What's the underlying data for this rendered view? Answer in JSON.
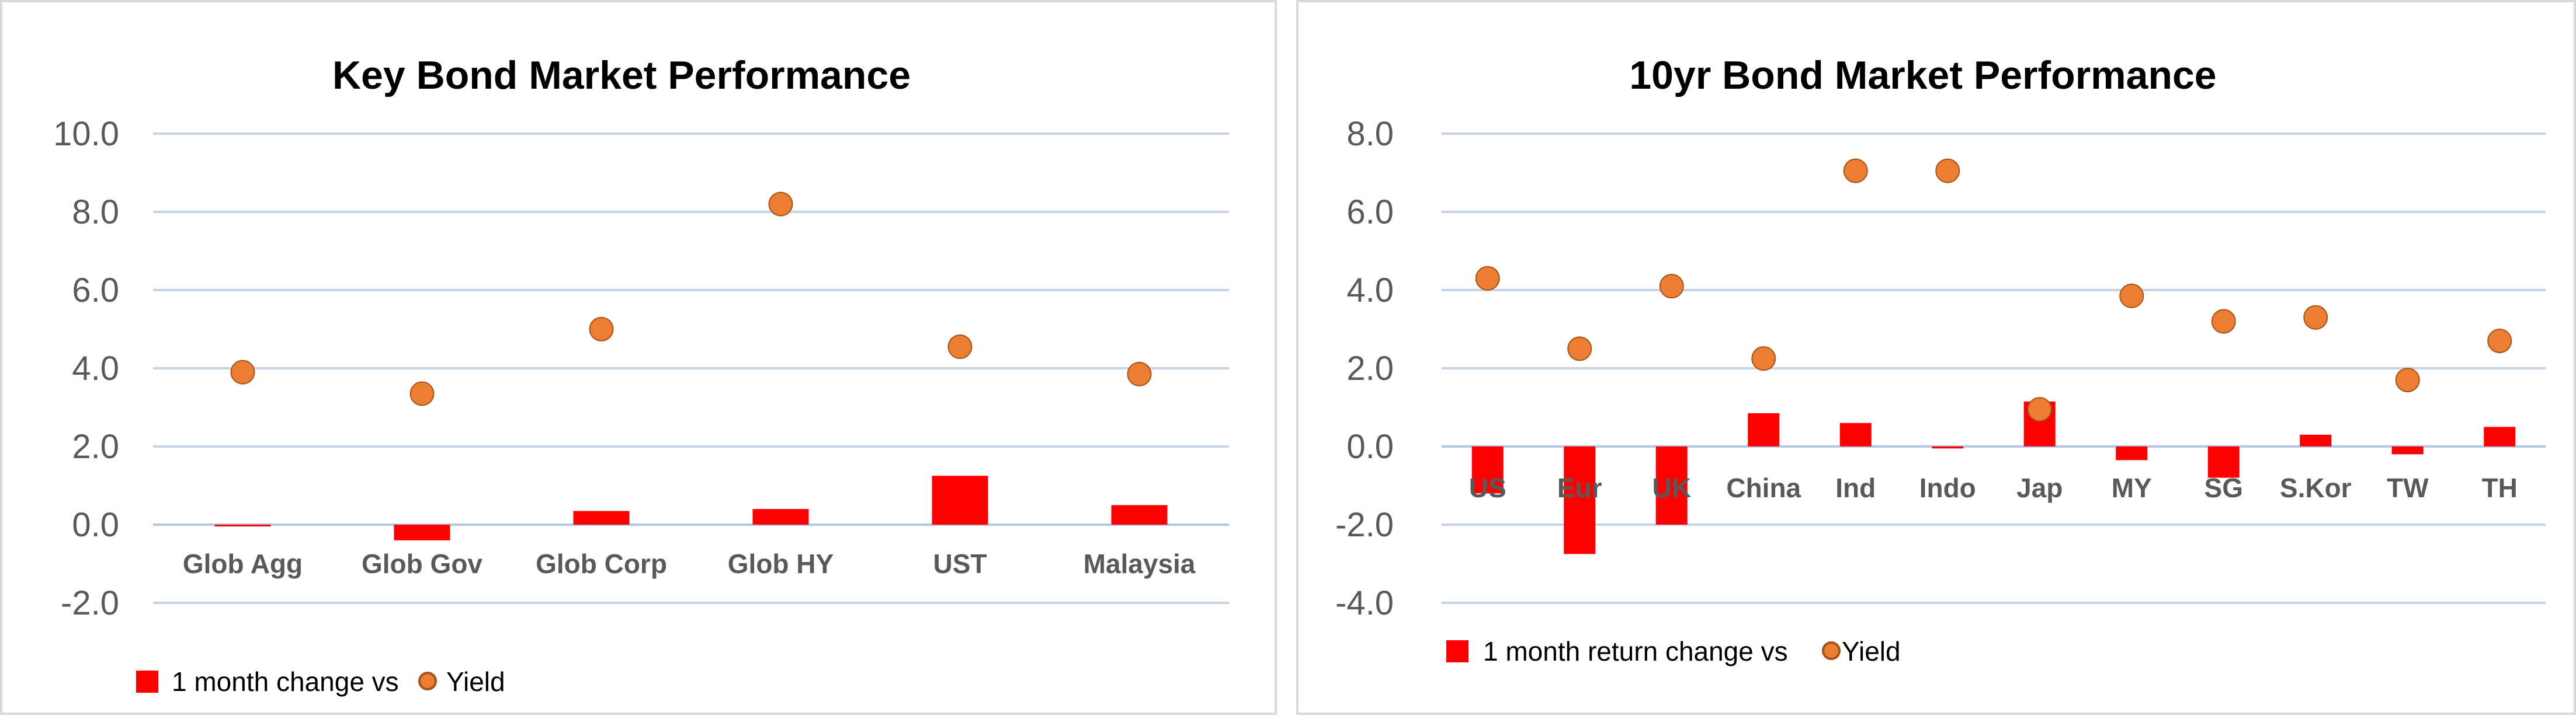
{
  "colors": {
    "bar": "#ff0000",
    "dot": "#ed7d31",
    "dot_edge": "#a45418",
    "grid": "#c5d3e8",
    "zero": "#b4c7e7"
  },
  "chart_data": [
    {
      "type": "bar",
      "title": "Key  Bond Market Performance",
      "categories": [
        "Glob Agg",
        "Glob Gov",
        "Glob Corp",
        "Glob HY",
        "UST",
        "Malaysia"
      ],
      "series": [
        {
          "name": "1 month change vs",
          "type": "bar",
          "values": [
            0.0,
            -0.4,
            0.35,
            0.4,
            1.25,
            0.5
          ]
        },
        {
          "name": "Yield",
          "type": "scatter",
          "values": [
            3.9,
            3.35,
            5.0,
            8.2,
            4.55,
            3.85
          ]
        }
      ],
      "ylim": [
        -2.0,
        10.0
      ],
      "yticks": [
        "10.0",
        "8.0",
        "6.0",
        "4.0",
        "2.0",
        "0.0",
        "-2.0"
      ],
      "ytick_values": [
        10,
        8,
        6,
        4,
        2,
        0,
        -2
      ],
      "legend": [
        "1 month change vs",
        "Yield"
      ],
      "legend_position": "bottom-left",
      "grid": true
    },
    {
      "type": "bar",
      "title": "10yr Bond Market Performance",
      "categories": [
        "US",
        "Eur",
        "UK",
        "China",
        "Ind",
        "Indo",
        "Jap",
        "MY",
        "SG",
        "S.Kor",
        "TW",
        "TH"
      ],
      "series": [
        {
          "name": "1 month return change vs",
          "type": "bar",
          "values": [
            -1.2,
            -2.75,
            -2.0,
            0.85,
            0.6,
            -0.05,
            1.15,
            -0.35,
            -0.8,
            0.3,
            -0.2,
            0.5
          ]
        },
        {
          "name": "Yield",
          "type": "scatter",
          "values": [
            4.3,
            2.5,
            4.1,
            2.25,
            7.05,
            7.05,
            0.95,
            3.85,
            3.2,
            3.3,
            1.7,
            2.7
          ]
        }
      ],
      "ylim": [
        -4.0,
        8.0
      ],
      "yticks": [
        "8.0",
        "6.0",
        "4.0",
        "2.0",
        "0.0",
        "-2.0",
        "-4.0"
      ],
      "ytick_values": [
        8,
        6,
        4,
        2,
        0,
        -2,
        -4
      ],
      "legend": [
        "1 month return change vs",
        "Yield"
      ],
      "legend_position": "bottom-left",
      "grid": true
    }
  ]
}
